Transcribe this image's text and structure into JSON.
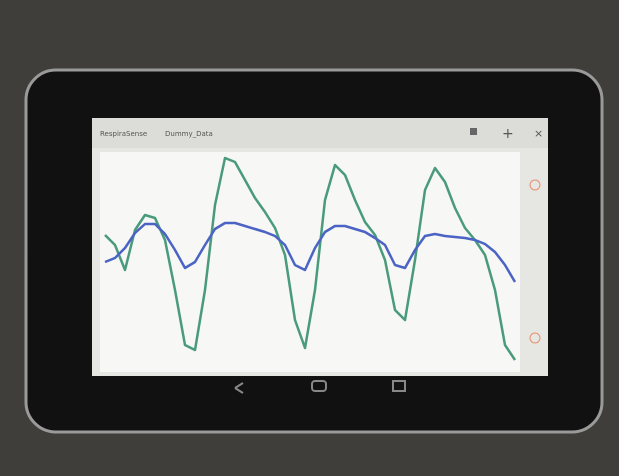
{
  "app_bar": {
    "app_name": "RespiraSense",
    "file_name": "Dummy_Data"
  },
  "chart_data": {
    "type": "line",
    "x": [
      0,
      1,
      2,
      3,
      4,
      5,
      6,
      7,
      8,
      9,
      10,
      11,
      12,
      13,
      14,
      15,
      16,
      17,
      18,
      19,
      20,
      21,
      22,
      23,
      24,
      25,
      26,
      27,
      28,
      29,
      30,
      31,
      32,
      33,
      34,
      35,
      36,
      37,
      38,
      39,
      40,
      41
    ],
    "xlim": [
      0,
      41
    ],
    "ylim": [
      0,
      215
    ],
    "series": [
      {
        "color": "#4a9a7c",
        "values": [
          135,
          125,
          100,
          140,
          155,
          152,
          130,
          80,
          25,
          20,
          80,
          165,
          212,
          208,
          190,
          172,
          158,
          142,
          115,
          50,
          22,
          80,
          170,
          205,
          195,
          170,
          148,
          135,
          110,
          60,
          50,
          110,
          180,
          202,
          188,
          162,
          142,
          130,
          115,
          80,
          25,
          10
        ]
      },
      {
        "color": "#4b63c4",
        "values": [
          108,
          112,
          122,
          137,
          146,
          146,
          136,
          120,
          102,
          108,
          125,
          141,
          147,
          147,
          144,
          141,
          138,
          134,
          125,
          105,
          100,
          122,
          138,
          144,
          144,
          141,
          138,
          132,
          125,
          105,
          102,
          120,
          134,
          136,
          134,
          133,
          132,
          130,
          126,
          118,
          105,
          88
        ]
      }
    ]
  }
}
